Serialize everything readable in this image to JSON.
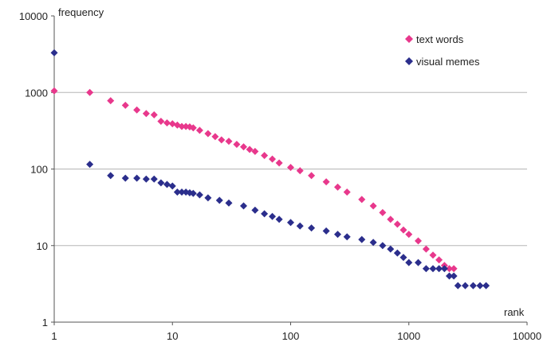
{
  "chart_data": {
    "type": "scatter",
    "title": "",
    "xlabel": "rank",
    "ylabel": "frequency",
    "xscale": "log",
    "yscale": "log",
    "xlim": [
      1,
      10000
    ],
    "ylim": [
      1,
      10000
    ],
    "x_ticks": [
      "1",
      "10",
      "100",
      "1000",
      "10000"
    ],
    "y_ticks": [
      "1",
      "10",
      "100",
      "1000",
      "10000"
    ],
    "grid": "horizontal",
    "legend_position": "top-right",
    "series": [
      {
        "name": "text words",
        "color": "#e8388c",
        "marker": "diamond",
        "points": [
          [
            1,
            1050
          ],
          [
            2,
            1000
          ],
          [
            3,
            780
          ],
          [
            4,
            680
          ],
          [
            5,
            590
          ],
          [
            6,
            530
          ],
          [
            7,
            510
          ],
          [
            8,
            420
          ],
          [
            9,
            400
          ],
          [
            10,
            390
          ],
          [
            11,
            375
          ],
          [
            12,
            360
          ],
          [
            13,
            360
          ],
          [
            14,
            355
          ],
          [
            15,
            345
          ],
          [
            17,
            320
          ],
          [
            20,
            290
          ],
          [
            23,
            265
          ],
          [
            26,
            240
          ],
          [
            30,
            230
          ],
          [
            35,
            210
          ],
          [
            40,
            195
          ],
          [
            45,
            180
          ],
          [
            50,
            170
          ],
          [
            60,
            150
          ],
          [
            70,
            135
          ],
          [
            80,
            120
          ],
          [
            100,
            105
          ],
          [
            120,
            95
          ],
          [
            150,
            82
          ],
          [
            200,
            68
          ],
          [
            250,
            58
          ],
          [
            300,
            50
          ],
          [
            400,
            40
          ],
          [
            500,
            33
          ],
          [
            600,
            27
          ],
          [
            700,
            22
          ],
          [
            800,
            19
          ],
          [
            900,
            16
          ],
          [
            1000,
            14
          ],
          [
            1200,
            11.5
          ],
          [
            1400,
            9
          ],
          [
            1600,
            7.5
          ],
          [
            1800,
            6.5
          ],
          [
            2000,
            5.5
          ],
          [
            2200,
            5
          ],
          [
            2400,
            5
          ]
        ]
      },
      {
        "name": "visual memes",
        "color": "#2b2e8c",
        "marker": "diamond",
        "points": [
          [
            1,
            3300
          ],
          [
            2,
            115
          ],
          [
            3,
            82
          ],
          [
            4,
            76
          ],
          [
            5,
            76
          ],
          [
            6,
            74
          ],
          [
            7,
            74
          ],
          [
            8,
            66
          ],
          [
            9,
            63
          ],
          [
            10,
            60
          ],
          [
            11,
            50
          ],
          [
            12,
            50
          ],
          [
            13,
            50
          ],
          [
            14,
            49
          ],
          [
            15,
            48
          ],
          [
            17,
            46
          ],
          [
            20,
            42
          ],
          [
            25,
            39
          ],
          [
            30,
            36
          ],
          [
            40,
            33
          ],
          [
            50,
            29
          ],
          [
            60,
            26
          ],
          [
            70,
            24
          ],
          [
            80,
            22
          ],
          [
            100,
            20
          ],
          [
            120,
            18
          ],
          [
            150,
            17
          ],
          [
            200,
            15.5
          ],
          [
            250,
            14
          ],
          [
            300,
            13
          ],
          [
            400,
            12
          ],
          [
            500,
            11
          ],
          [
            600,
            10
          ],
          [
            700,
            9
          ],
          [
            800,
            8
          ],
          [
            900,
            7
          ],
          [
            1000,
            6
          ],
          [
            1200,
            6
          ],
          [
            1400,
            5
          ],
          [
            1600,
            5
          ],
          [
            1800,
            5
          ],
          [
            2000,
            5
          ],
          [
            2200,
            4
          ],
          [
            2400,
            4
          ],
          [
            2600,
            3
          ],
          [
            3000,
            3
          ],
          [
            3500,
            3
          ],
          [
            4000,
            3
          ],
          [
            4500,
            3
          ]
        ]
      }
    ]
  }
}
